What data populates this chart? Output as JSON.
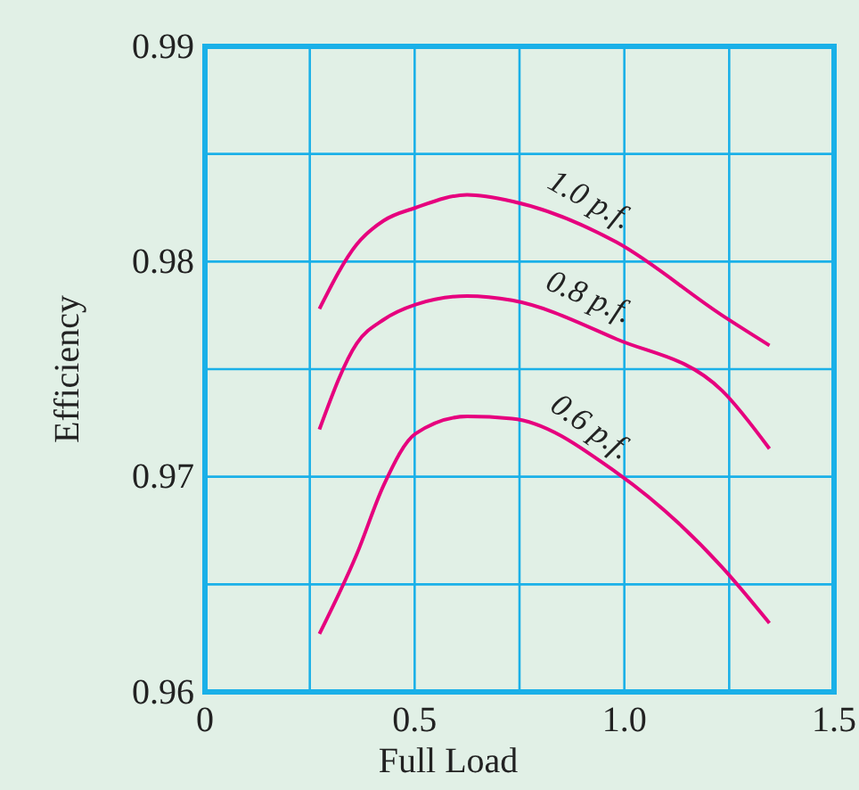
{
  "chart_data": {
    "type": "line",
    "xlabel": "Full Load",
    "ylabel": "Efficiency",
    "xlim": [
      0,
      1.5
    ],
    "ylim": [
      0.96,
      0.99
    ],
    "xticks": [
      {
        "value": 0,
        "label": "0"
      },
      {
        "value": 0.25,
        "label": null
      },
      {
        "value": 0.5,
        "label": "0.5"
      },
      {
        "value": 0.75,
        "label": null
      },
      {
        "value": 1,
        "label": "1.0"
      },
      {
        "value": 1.25,
        "label": null
      },
      {
        "value": 1.5,
        "label": "1.5"
      }
    ],
    "yticks": [
      0.96,
      {
        "value": 0.965,
        "label": null
      },
      0.97,
      {
        "value": 0.975,
        "label": null
      },
      0.98,
      {
        "value": 0.985,
        "label": null
      },
      0.99
    ],
    "grid": true,
    "marker": "none",
    "line_style": "solid",
    "x": [
      0.273,
      0.362,
      0.426,
      0.502,
      0.625,
      0.732,
      0.981,
      1.233,
      1.346
    ],
    "series": [
      {
        "name": "1.0 p.f.",
        "color": "#e6007e",
        "values": [
          0.9778,
          0.9808,
          0.9819,
          0.9825,
          0.9831,
          0.9828,
          0.9809,
          0.9775,
          0.9761
        ]
      },
      {
        "name": "0.8 p.f.",
        "color": "#e6007e",
        "values": [
          0.9722,
          0.9762,
          0.9773,
          0.978,
          0.9784,
          0.9782,
          0.9764,
          0.974,
          0.9713
        ]
      },
      {
        "name": "0.6 p.f.",
        "color": "#e6007e",
        "values": [
          0.9627,
          0.9664,
          0.9696,
          0.972,
          0.9728,
          0.9727,
          0.9702,
          0.9658,
          0.9632
        ]
      }
    ]
  }
}
